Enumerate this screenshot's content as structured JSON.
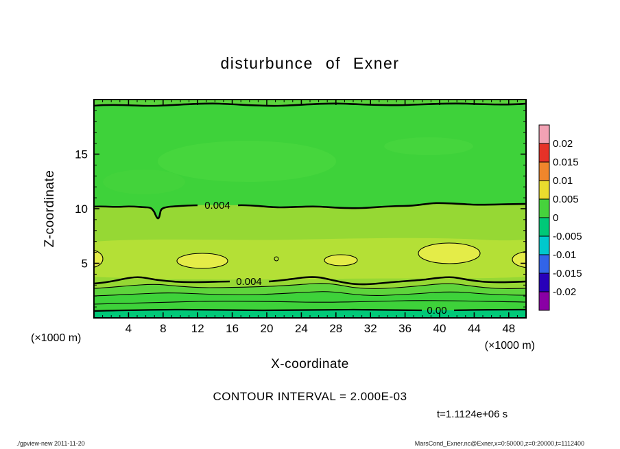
{
  "title": "disturbunce of Exner",
  "axes": {
    "x_label": "X-coordinate",
    "y_label": "Z-coordinate",
    "x_unit_left": "(×1000 m)",
    "x_unit_right": "(×1000 m)"
  },
  "contour_labels": {
    "upper": "0.004",
    "lower": "0.004",
    "zero": "0.00"
  },
  "annotations": {
    "contour_interval": "CONTOUR INTERVAL = 2.000E-03",
    "time": "t=1.1124e+06 s"
  },
  "footer": {
    "left": "./gpview-new  2011-11-20",
    "right": "MarsCond_Exner.nc@Exner,x=0:50000,z=0:20000,t=1112400"
  },
  "chart_data": {
    "type": "heatmap",
    "subtype": "filled_contour",
    "title": "disturbunce of Exner",
    "xlabel": "X-coordinate",
    "ylabel": "Z-coordinate",
    "x_unit": "×1000 m",
    "y_unit": "×1000 m",
    "xlim": [
      0,
      50
    ],
    "ylim": [
      0,
      20
    ],
    "x_ticks": [
      4,
      8,
      12,
      16,
      20,
      24,
      28,
      32,
      36,
      40,
      44,
      48
    ],
    "y_ticks": [
      5,
      10,
      15
    ],
    "grid": false,
    "contour_interval": 0.002,
    "contour_interval_label": "CONTOUR INTERVAL = 2.000E-03",
    "time_label": "t=1.1124e+06 s",
    "colorbar": {
      "position": "right",
      "boundary_labels": [
        "0.02",
        "0.015",
        "0.01",
        "0.005",
        "0",
        "-0.005",
        "-0.01",
        "-0.015",
        "-0.02"
      ],
      "cell_colors_top_to_bottom": [
        "#f2a2b4",
        "#e63228",
        "#f0862c",
        "#eadc2e",
        "#46d23c",
        "#00c878",
        "#00c8cd",
        "#3264e8",
        "#2800b9",
        "#8a00a5"
      ]
    },
    "labeled_contours": [
      {
        "value": 0.004,
        "label": "0.004",
        "approx_z": 10.0,
        "extent": "full width, wavy, notch dip near x=7"
      },
      {
        "value": 0.004,
        "label": "0.004",
        "approx_z": 3.5,
        "extent": "full width, wavy"
      },
      {
        "value": 0.0,
        "label": "0.00",
        "approx_z": 0.7,
        "extent": "full width near surface"
      }
    ],
    "unlabeled_contours": [
      {
        "value": 0.004,
        "approx_z": 19.5,
        "extent": "thick line along model top"
      },
      {
        "value": 0.002,
        "approx_z": 2.8,
        "extent": "thin full-width line"
      },
      {
        "value": 0.002,
        "approx_z": 2.1,
        "extent": "thin full-width line"
      },
      {
        "value": 0.002,
        "approx_z": 1.3,
        "extent": "thin full-width line"
      }
    ],
    "features": [
      "Field mostly ~0 to 0.004 (green) above z=10 (x1000 m), with slightly lighter green patches near z=13-16",
      "Elevated yellow-green band (~0.004-0.006) between z=3.5 and z=10 across full x range",
      "Closed yellow maxima (~0.006) near z=5 at x=0, 12, 28, 40 and 50 (x1000 m); tiny closed contour near x=21, z=5.3",
      "Values decrease toward surface, crossing 0.00 near z=0.7",
      "Time shown t=1.1124e+06 s (t=1112400)"
    ]
  }
}
